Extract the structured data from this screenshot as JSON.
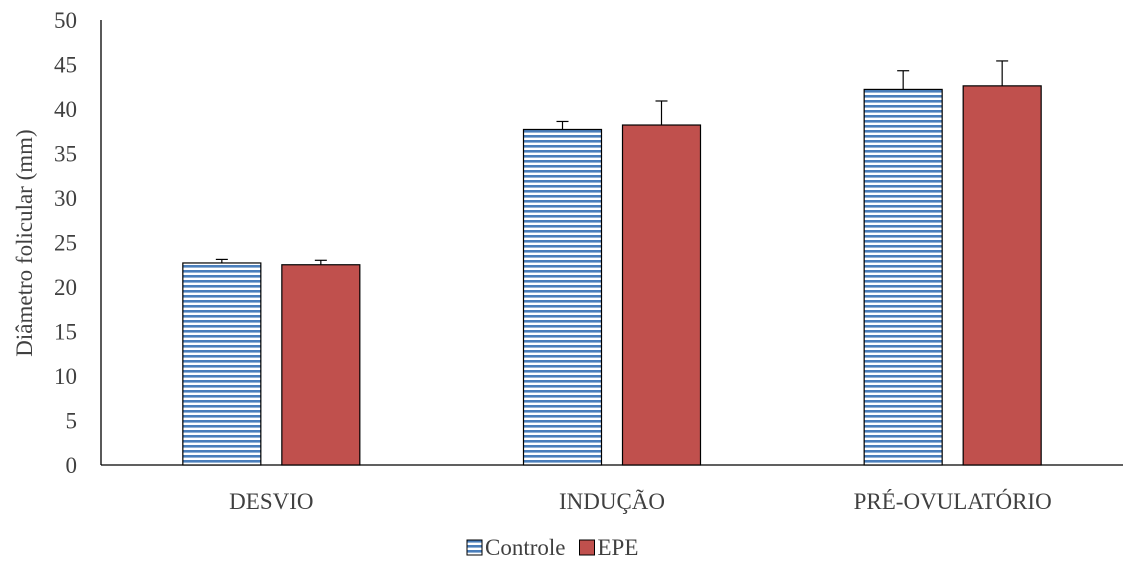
{
  "chart_data": {
    "type": "bar",
    "categories": [
      "DESVIO",
      "INDUÇÃO",
      "PRÉ-OVULATÓRIO"
    ],
    "series": [
      {
        "name": "Controle",
        "values": [
          22.7,
          37.7,
          42.2
        ],
        "errors": [
          0.4,
          0.9,
          2.1
        ],
        "color": "#4a7ebb",
        "pattern": "horizontal-stripes"
      },
      {
        "name": "EPE",
        "values": [
          22.5,
          38.2,
          42.6
        ],
        "errors": [
          0.5,
          2.7,
          2.8
        ],
        "color": "#c0504d",
        "pattern": "solid"
      }
    ],
    "title": "",
    "xlabel": "",
    "ylabel": "Diâmetro folicular (mm)",
    "ylim": [
      0,
      50
    ],
    "yticks": [
      0,
      5,
      10,
      15,
      20,
      25,
      30,
      35,
      40,
      45,
      50
    ],
    "grid": false,
    "legend_position": "bottom",
    "error_bars": true
  }
}
